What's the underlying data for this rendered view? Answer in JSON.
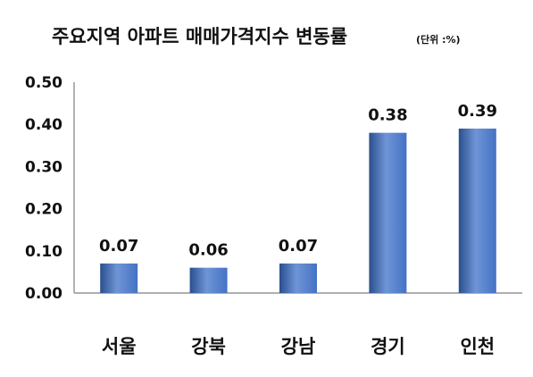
{
  "chart_data": {
    "type": "bar",
    "title": "주요지역 아파트 매매가격지수 변동률",
    "unit_note": "(단위 :%)",
    "categories": [
      "서울",
      "강북",
      "강남",
      "경기",
      "인천"
    ],
    "values": [
      0.07,
      0.06,
      0.07,
      0.38,
      0.39
    ],
    "value_labels": [
      "0.07",
      "0.06",
      "0.07",
      "0.38",
      "0.39"
    ],
    "ylim": [
      0,
      0.5
    ],
    "yticks": [
      "0.00",
      "0.10",
      "0.20",
      "0.30",
      "0.40",
      "0.50"
    ],
    "ytick_values": [
      0,
      0.1,
      0.2,
      0.3,
      0.4,
      0.5
    ],
    "xlabel": "",
    "ylabel": "",
    "grid": false,
    "legend": "none",
    "bar_color": "#4472C4",
    "bar_color_dark": "#2a4f8f",
    "bar_color_light": "#6f95d6"
  }
}
